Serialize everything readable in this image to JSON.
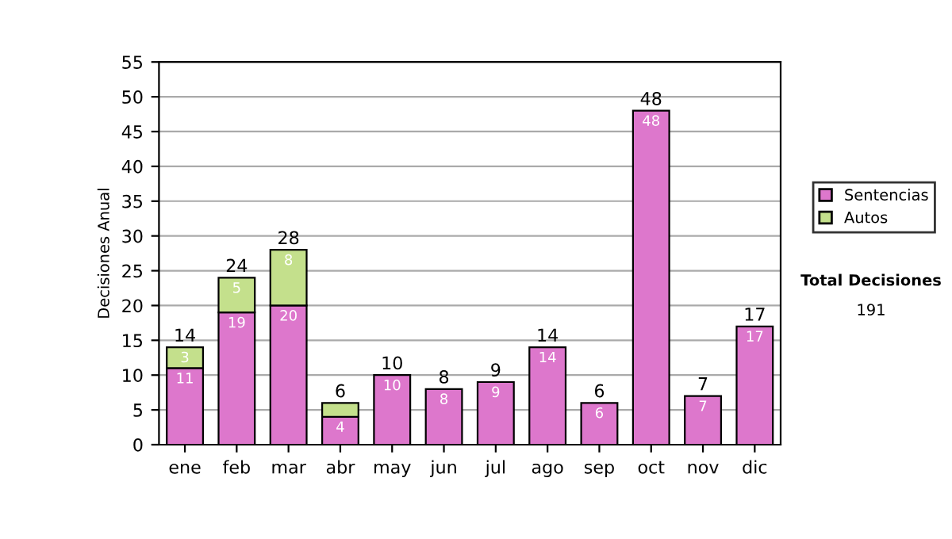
{
  "chart_data": {
    "type": "bar",
    "stacked": true,
    "ylabel": "Decisiones Anual",
    "categories": [
      "ene",
      "feb",
      "mar",
      "abr",
      "may",
      "jun",
      "jul",
      "ago",
      "sep",
      "oct",
      "nov",
      "dic"
    ],
    "series": [
      {
        "name": "Sentencias",
        "color": "#dd77cc",
        "values": [
          11,
          19,
          20,
          4,
          10,
          8,
          9,
          14,
          6,
          48,
          7,
          17
        ],
        "value_labels": [
          "11",
          "19",
          "20",
          "4",
          "10",
          "8",
          "9",
          "14",
          "6",
          "48",
          "7",
          "17"
        ]
      },
      {
        "name": "Autos",
        "color": "#c4e08c",
        "values": [
          3,
          5,
          8,
          2,
          null,
          null,
          null,
          null,
          null,
          null,
          null,
          null
        ],
        "value_labels": [
          "3",
          "5",
          "8",
          null,
          null,
          null,
          null,
          null,
          null,
          null,
          null,
          null
        ]
      }
    ],
    "totals": [
      "14",
      "24",
      "28",
      "6",
      "10",
      "8",
      "9",
      "14",
      "6",
      "48",
      "7",
      "17"
    ],
    "ylim": [
      0,
      55
    ],
    "yticks": [
      0,
      5,
      10,
      15,
      20,
      25,
      30,
      35,
      40,
      45,
      50,
      55
    ],
    "grid": "y",
    "legend": "right",
    "annotations": [
      "Total Decisiones",
      "191"
    ]
  }
}
